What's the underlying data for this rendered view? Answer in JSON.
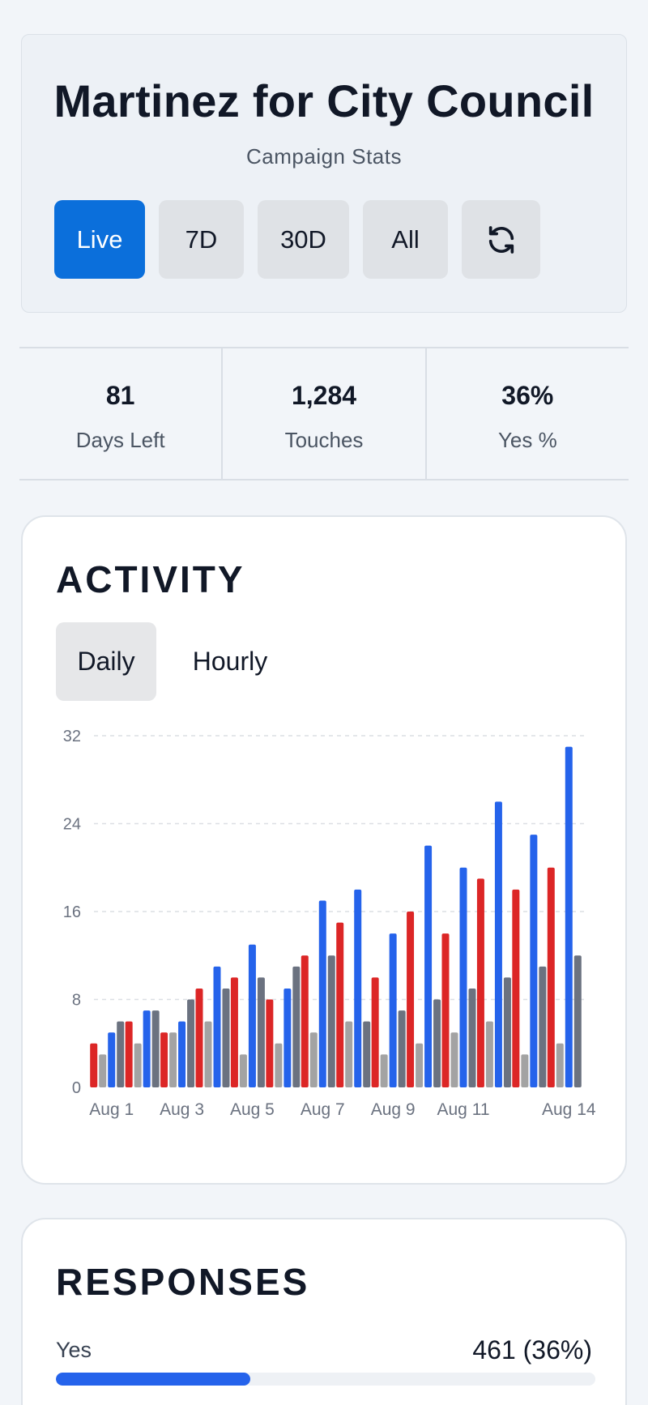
{
  "header": {
    "title": "Martinez for City Council",
    "subtitle": "Campaign Stats",
    "ranges": [
      "Live",
      "7D",
      "30D",
      "All"
    ],
    "active_range": "Live",
    "refresh_icon": "refresh-icon"
  },
  "stats": [
    {
      "value": "81",
      "label": "Days Left"
    },
    {
      "value": "1,284",
      "label": "Touches"
    },
    {
      "value": "36%",
      "label": "Yes %"
    }
  ],
  "activity": {
    "title": "ACTIVITY",
    "toggles": [
      "Daily",
      "Hourly"
    ],
    "active_toggle": "Daily"
  },
  "chart_data": {
    "type": "bar",
    "categories": [
      "Aug 1",
      "Aug 2",
      "Aug 3",
      "Aug 4",
      "Aug 5",
      "Aug 6",
      "Aug 7",
      "Aug 8",
      "Aug 9",
      "Aug 10",
      "Aug 11",
      "Aug 12",
      "Aug 13",
      "Aug 14"
    ],
    "tick_labels": [
      "Aug 1",
      "Aug 3",
      "Aug 5",
      "Aug 7",
      "Aug 9",
      "Aug 11",
      "Aug 14"
    ],
    "series": [
      {
        "color": "#dc2626",
        "values": [
          4,
          6,
          5,
          9,
          10,
          8,
          12,
          15,
          10,
          16,
          14,
          19,
          18,
          20
        ]
      },
      {
        "color": "#a3a3a3",
        "values": [
          3,
          4,
          5,
          6,
          3,
          4,
          5,
          6,
          3,
          4,
          5,
          6,
          3,
          4
        ]
      },
      {
        "color": "#2563eb",
        "values": [
          5,
          7,
          6,
          11,
          13,
          9,
          17,
          18,
          14,
          22,
          20,
          26,
          23,
          31
        ]
      },
      {
        "color": "#6b7280",
        "values": [
          6,
          7,
          8,
          9,
          10,
          11,
          12,
          6,
          7,
          8,
          9,
          10,
          11,
          12
        ]
      }
    ],
    "ylim": [
      0,
      32
    ],
    "yticks": [
      0,
      8,
      16,
      24,
      32
    ],
    "grid": true
  },
  "responses": {
    "title": "RESPONSES",
    "items": [
      {
        "label": "Yes",
        "value": "461 (36%)",
        "fraction": 0.36,
        "color": "#2563eb"
      }
    ]
  }
}
